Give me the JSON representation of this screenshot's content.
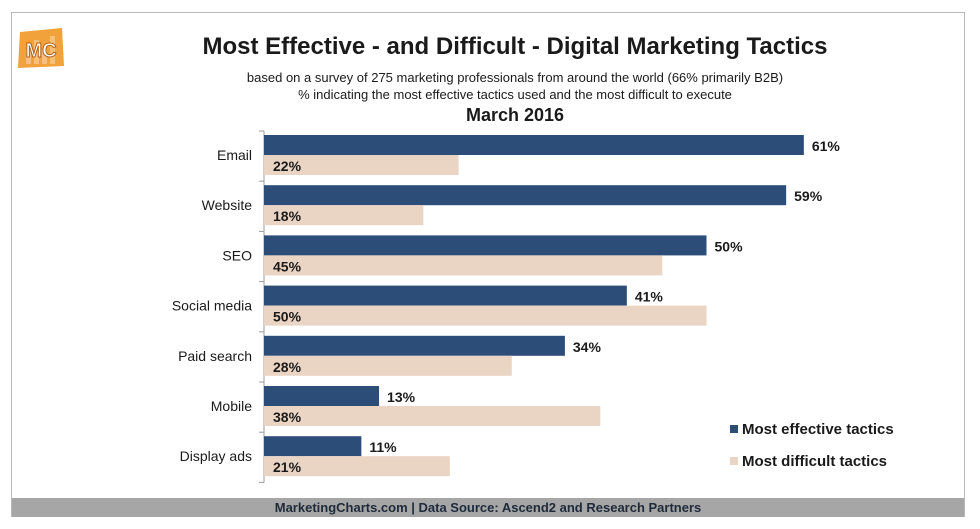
{
  "logo_text": "MC",
  "chart_data": {
    "type": "bar",
    "orientation": "horizontal",
    "title": "Most Effective - and Difficult - Digital Marketing Tactics",
    "subtitle_lines": [
      "based on a survey of 275 marketing professionals from around the world (66% primarily B2B)",
      "% indicating the most effective tactics used and the most difficult to execute"
    ],
    "period": "March 2016",
    "categories": [
      "Email",
      "Website",
      "SEO",
      "Social media",
      "Paid search",
      "Mobile",
      "Display ads"
    ],
    "series": [
      {
        "name": "Most effective tactics",
        "values": [
          61,
          59,
          50,
          41,
          34,
          13,
          11
        ],
        "color": "#2d4d79"
      },
      {
        "name": "Most difficult tactics",
        "values": [
          22,
          18,
          45,
          50,
          28,
          38,
          21
        ],
        "color": "#ead5c4"
      }
    ],
    "value_suffix": "%",
    "xlim": [
      0,
      100
    ],
    "grid": false,
    "legend_position": "bottom-right",
    "source": "MarketingCharts.com | Data Source: Ascend2 and Research Partners"
  }
}
